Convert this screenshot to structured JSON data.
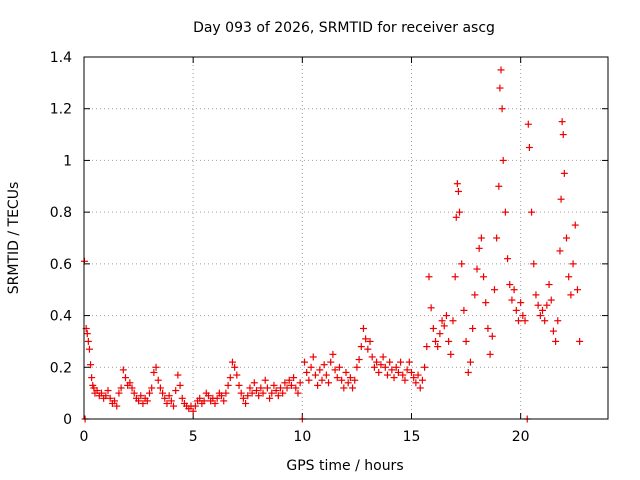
{
  "chart_data": {
    "type": "scatter",
    "title": "Day 093 of 2026, SRMTID for receiver ascg",
    "xlabel": "GPS time / hours",
    "ylabel": "SRMTID / TECUs",
    "xlim": [
      0,
      24
    ],
    "ylim": [
      0,
      1.4
    ],
    "xticks": [
      0,
      5,
      10,
      15,
      20
    ],
    "yticks": [
      0,
      0.2,
      0.4,
      0.6,
      0.8,
      1,
      1.2,
      1.4
    ],
    "grid": true,
    "marker": "+",
    "series": [
      {
        "name": "SRMTID",
        "color": "#ee0000",
        "points": [
          [
            0.02,
            0.61
          ],
          [
            0.05,
            0.0
          ],
          [
            0.1,
            0.35
          ],
          [
            0.15,
            0.33
          ],
          [
            0.2,
            0.3
          ],
          [
            0.25,
            0.27
          ],
          [
            0.3,
            0.21
          ],
          [
            0.35,
            0.16
          ],
          [
            0.4,
            0.13
          ],
          [
            0.45,
            0.12
          ],
          [
            0.5,
            0.1
          ],
          [
            0.6,
            0.11
          ],
          [
            0.7,
            0.09
          ],
          [
            0.8,
            0.1
          ],
          [
            0.9,
            0.08
          ],
          [
            1.0,
            0.09
          ],
          [
            1.1,
            0.11
          ],
          [
            1.2,
            0.08
          ],
          [
            1.3,
            0.06
          ],
          [
            1.4,
            0.07
          ],
          [
            1.5,
            0.05
          ],
          [
            1.6,
            0.1
          ],
          [
            1.7,
            0.12
          ],
          [
            1.8,
            0.19
          ],
          [
            1.9,
            0.16
          ],
          [
            2.0,
            0.13
          ],
          [
            2.1,
            0.14
          ],
          [
            2.2,
            0.12
          ],
          [
            2.3,
            0.1
          ],
          [
            2.4,
            0.08
          ],
          [
            2.5,
            0.07
          ],
          [
            2.6,
            0.09
          ],
          [
            2.7,
            0.06
          ],
          [
            2.8,
            0.08
          ],
          [
            2.9,
            0.07
          ],
          [
            3.0,
            0.1
          ],
          [
            3.1,
            0.12
          ],
          [
            3.2,
            0.18
          ],
          [
            3.3,
            0.2
          ],
          [
            3.4,
            0.15
          ],
          [
            3.5,
            0.12
          ],
          [
            3.6,
            0.1
          ],
          [
            3.7,
            0.08
          ],
          [
            3.8,
            0.06
          ],
          [
            3.9,
            0.09
          ],
          [
            4.0,
            0.07
          ],
          [
            4.1,
            0.05
          ],
          [
            4.2,
            0.11
          ],
          [
            4.3,
            0.17
          ],
          [
            4.4,
            0.13
          ],
          [
            4.5,
            0.08
          ],
          [
            4.6,
            0.06
          ],
          [
            4.7,
            0.05
          ],
          [
            4.8,
            0.04
          ],
          [
            4.9,
            0.05
          ],
          [
            5.0,
            0.03
          ],
          [
            5.1,
            0.05
          ],
          [
            5.2,
            0.07
          ],
          [
            5.3,
            0.08
          ],
          [
            5.4,
            0.06
          ],
          [
            5.5,
            0.07
          ],
          [
            5.6,
            0.1
          ],
          [
            5.7,
            0.09
          ],
          [
            5.8,
            0.07
          ],
          [
            5.9,
            0.08
          ],
          [
            6.0,
            0.06
          ],
          [
            6.1,
            0.08
          ],
          [
            6.2,
            0.1
          ],
          [
            6.3,
            0.09
          ],
          [
            6.4,
            0.07
          ],
          [
            6.5,
            0.1
          ],
          [
            6.6,
            0.13
          ],
          [
            6.7,
            0.16
          ],
          [
            6.8,
            0.22
          ],
          [
            6.9,
            0.2
          ],
          [
            7.0,
            0.17
          ],
          [
            7.1,
            0.13
          ],
          [
            7.2,
            0.1
          ],
          [
            7.3,
            0.08
          ],
          [
            7.4,
            0.06
          ],
          [
            7.5,
            0.09
          ],
          [
            7.6,
            0.12
          ],
          [
            7.7,
            0.1
          ],
          [
            7.8,
            0.14
          ],
          [
            7.9,
            0.11
          ],
          [
            8.0,
            0.09
          ],
          [
            8.1,
            0.12
          ],
          [
            8.2,
            0.1
          ],
          [
            8.3,
            0.15
          ],
          [
            8.4,
            0.12
          ],
          [
            8.5,
            0.08
          ],
          [
            8.6,
            0.1
          ],
          [
            8.7,
            0.13
          ],
          [
            8.8,
            0.11
          ],
          [
            8.9,
            0.09
          ],
          [
            9.0,
            0.12
          ],
          [
            9.1,
            0.1
          ],
          [
            9.2,
            0.14
          ],
          [
            9.3,
            0.12
          ],
          [
            9.4,
            0.15
          ],
          [
            9.5,
            0.13
          ],
          [
            9.6,
            0.16
          ],
          [
            9.7,
            0.12
          ],
          [
            9.8,
            0.1
          ],
          [
            9.9,
            0.14
          ],
          [
            10.0,
            0.0
          ],
          [
            10.1,
            0.22
          ],
          [
            10.2,
            0.18
          ],
          [
            10.3,
            0.15
          ],
          [
            10.4,
            0.2
          ],
          [
            10.5,
            0.24
          ],
          [
            10.6,
            0.17
          ],
          [
            10.7,
            0.13
          ],
          [
            10.8,
            0.19
          ],
          [
            10.9,
            0.15
          ],
          [
            11.0,
            0.21
          ],
          [
            11.1,
            0.17
          ],
          [
            11.2,
            0.14
          ],
          [
            11.3,
            0.22
          ],
          [
            11.4,
            0.25
          ],
          [
            11.5,
            0.19
          ],
          [
            11.6,
            0.16
          ],
          [
            11.7,
            0.2
          ],
          [
            11.8,
            0.15
          ],
          [
            11.9,
            0.12
          ],
          [
            12.0,
            0.18
          ],
          [
            12.1,
            0.14
          ],
          [
            12.2,
            0.16
          ],
          [
            12.3,
            0.12
          ],
          [
            12.4,
            0.15
          ],
          [
            12.5,
            0.2
          ],
          [
            12.6,
            0.23
          ],
          [
            12.7,
            0.28
          ],
          [
            12.8,
            0.35
          ],
          [
            12.9,
            0.31
          ],
          [
            13.0,
            0.27
          ],
          [
            13.1,
            0.3
          ],
          [
            13.2,
            0.24
          ],
          [
            13.3,
            0.2
          ],
          [
            13.4,
            0.22
          ],
          [
            13.5,
            0.18
          ],
          [
            13.6,
            0.21
          ],
          [
            13.7,
            0.24
          ],
          [
            13.8,
            0.2
          ],
          [
            13.9,
            0.17
          ],
          [
            14.0,
            0.22
          ],
          [
            14.1,
            0.19
          ],
          [
            14.2,
            0.16
          ],
          [
            14.3,
            0.2
          ],
          [
            14.4,
            0.18
          ],
          [
            14.5,
            0.22
          ],
          [
            14.6,
            0.17
          ],
          [
            14.7,
            0.15
          ],
          [
            14.8,
            0.19
          ],
          [
            14.9,
            0.22
          ],
          [
            15.0,
            0.18
          ],
          [
            15.1,
            0.16
          ],
          [
            15.2,
            0.14
          ],
          [
            15.3,
            0.17
          ],
          [
            15.4,
            0.12
          ],
          [
            15.5,
            0.15
          ],
          [
            15.6,
            0.2
          ],
          [
            15.7,
            0.28
          ],
          [
            15.8,
            0.55
          ],
          [
            15.9,
            0.43
          ],
          [
            16.0,
            0.35
          ],
          [
            16.1,
            0.3
          ],
          [
            16.2,
            0.28
          ],
          [
            16.3,
            0.33
          ],
          [
            16.4,
            0.38
          ],
          [
            16.5,
            0.36
          ],
          [
            16.6,
            0.4
          ],
          [
            16.7,
            0.3
          ],
          [
            16.8,
            0.25
          ],
          [
            16.9,
            0.38
          ],
          [
            17.0,
            0.55
          ],
          [
            17.05,
            0.78
          ],
          [
            17.1,
            0.91
          ],
          [
            17.15,
            0.88
          ],
          [
            17.2,
            0.8
          ],
          [
            17.3,
            0.6
          ],
          [
            17.4,
            0.42
          ],
          [
            17.5,
            0.3
          ],
          [
            17.6,
            0.18
          ],
          [
            17.7,
            0.22
          ],
          [
            17.8,
            0.35
          ],
          [
            17.9,
            0.48
          ],
          [
            18.0,
            0.58
          ],
          [
            18.1,
            0.66
          ],
          [
            18.2,
            0.7
          ],
          [
            18.3,
            0.55
          ],
          [
            18.4,
            0.45
          ],
          [
            18.5,
            0.35
          ],
          [
            18.6,
            0.25
          ],
          [
            18.7,
            0.32
          ],
          [
            18.8,
            0.5
          ],
          [
            18.9,
            0.7
          ],
          [
            19.0,
            0.9
          ],
          [
            19.05,
            1.28
          ],
          [
            19.1,
            1.35
          ],
          [
            19.15,
            1.2
          ],
          [
            19.2,
            1.0
          ],
          [
            19.3,
            0.8
          ],
          [
            19.4,
            0.62
          ],
          [
            19.5,
            0.52
          ],
          [
            19.6,
            0.46
          ],
          [
            19.7,
            0.5
          ],
          [
            19.8,
            0.42
          ],
          [
            19.9,
            0.38
          ],
          [
            20.0,
            0.45
          ],
          [
            20.1,
            0.4
          ],
          [
            20.2,
            0.38
          ],
          [
            20.3,
            0.0
          ],
          [
            20.35,
            1.14
          ],
          [
            20.4,
            1.05
          ],
          [
            20.5,
            0.8
          ],
          [
            20.6,
            0.6
          ],
          [
            20.7,
            0.48
          ],
          [
            20.8,
            0.44
          ],
          [
            20.9,
            0.4
          ],
          [
            21.0,
            0.42
          ],
          [
            21.1,
            0.38
          ],
          [
            21.2,
            0.44
          ],
          [
            21.3,
            0.52
          ],
          [
            21.4,
            0.46
          ],
          [
            21.5,
            0.34
          ],
          [
            21.6,
            0.3
          ],
          [
            21.7,
            0.38
          ],
          [
            21.8,
            0.65
          ],
          [
            21.85,
            0.85
          ],
          [
            21.9,
            1.15
          ],
          [
            21.95,
            1.1
          ],
          [
            22.0,
            0.95
          ],
          [
            22.1,
            0.7
          ],
          [
            22.2,
            0.55
          ],
          [
            22.3,
            0.48
          ],
          [
            22.4,
            0.6
          ],
          [
            22.5,
            0.75
          ],
          [
            22.6,
            0.5
          ],
          [
            22.7,
            0.3
          ]
        ]
      }
    ]
  }
}
